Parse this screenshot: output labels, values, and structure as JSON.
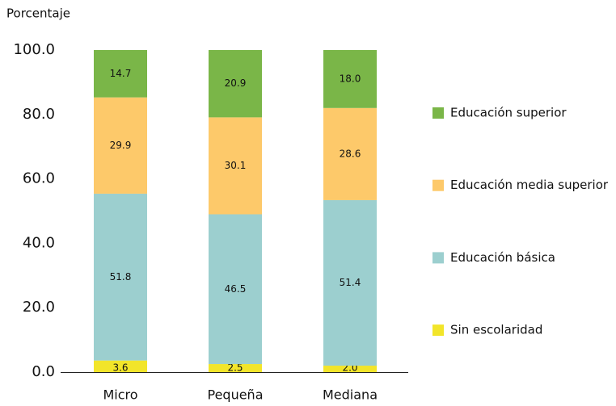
{
  "chart_data": {
    "type": "stacked_bar",
    "y_label": "Porcentaje",
    "categories": [
      "Micro",
      "Pequeña",
      "Mediana"
    ],
    "series": [
      {
        "name": "Sin escolaridad",
        "color": "#f2e52a",
        "values": [
          3.6,
          2.5,
          2.0
        ],
        "value_labels": [
          "3.6",
          "2.5",
          "2.0"
        ]
      },
      {
        "name": "Educación básica",
        "color": "#9ccfcf",
        "values": [
          51.8,
          46.5,
          51.4
        ],
        "value_labels": [
          "51.8",
          "46.5",
          "51.4"
        ]
      },
      {
        "name": "Educación media superior",
        "color": "#fdc96a",
        "values": [
          29.9,
          30.1,
          28.6
        ],
        "value_labels": [
          "29.9",
          "30.1",
          "28.6"
        ]
      },
      {
        "name": "Educación superior",
        "color": "#7ab648",
        "values": [
          14.7,
          20.9,
          18.0
        ],
        "value_labels": [
          "14.7",
          "20.9",
          "18.0"
        ]
      }
    ],
    "ylim": [
      0,
      100
    ],
    "yticks": [
      {
        "value": 0,
        "label": "0.0"
      },
      {
        "value": 20,
        "label": "20.0"
      },
      {
        "value": 40,
        "label": "40.0"
      },
      {
        "value": 60,
        "label": "60.0"
      },
      {
        "value": 80,
        "label": "80.0"
      },
      {
        "value": 100,
        "label": "100.0"
      }
    ],
    "legend": "right"
  }
}
